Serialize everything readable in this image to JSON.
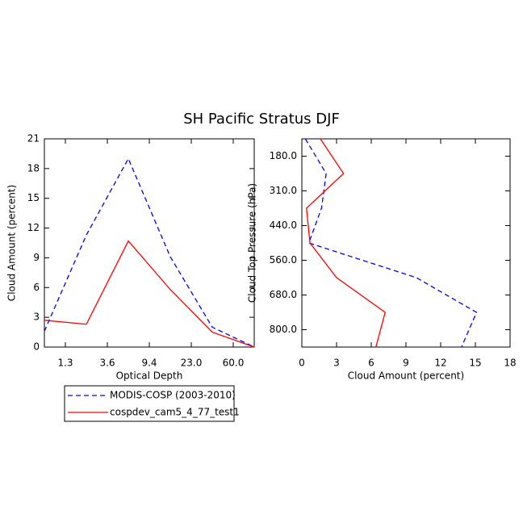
{
  "title": "SH Pacific Stratus DJF",
  "chart_data": [
    {
      "type": "line",
      "orientation": "vertical",
      "xlabel": "Optical Depth",
      "ylabel": "Cloud Amount (percent)",
      "x": [
        0,
        1,
        2,
        3,
        4,
        5
      ],
      "xlim": [
        0,
        5
      ],
      "xticks": [
        {
          "value": 0.5,
          "label": "1.3"
        },
        {
          "value": 1.5,
          "label": "3.6"
        },
        {
          "value": 2.5,
          "label": "9.4"
        },
        {
          "value": 3.5,
          "label": "23.0"
        },
        {
          "value": 4.5,
          "label": "60.0"
        }
      ],
      "ylim": [
        0,
        21
      ],
      "yticks": [
        0,
        3,
        6,
        9,
        12,
        15,
        18,
        21
      ],
      "series": [
        {
          "name": "MODIS-COSP (2003-2010)",
          "color": "#0000ff",
          "dash": true,
          "values": [
            1.6,
            11.3,
            19.0,
            9.1,
            2.0,
            0
          ]
        },
        {
          "name": "cospdev_cam5_4_77_test1",
          "color": "#ff0000",
          "dash": false,
          "values": [
            2.7,
            2.3,
            10.7,
            5.8,
            1.5,
            0
          ]
        }
      ]
    },
    {
      "type": "line",
      "orientation": "horizontal",
      "xlabel": "Cloud Amount (percent)",
      "ylabel": "Cloud Top Pressure (hPa)",
      "y": [
        0,
        1,
        2,
        3,
        4,
        5,
        6
      ],
      "ylim": [
        0,
        6
      ],
      "y_reversed": true,
      "yticks": [
        {
          "value": 0.5,
          "label": "180.0"
        },
        {
          "value": 1.5,
          "label": "310.0"
        },
        {
          "value": 2.5,
          "label": "440.0"
        },
        {
          "value": 3.5,
          "label": "560.0"
        },
        {
          "value": 4.5,
          "label": "680.0"
        },
        {
          "value": 5.5,
          "label": "800.0"
        }
      ],
      "xlim": [
        0,
        18
      ],
      "xticks": [
        0,
        3,
        6,
        9,
        12,
        15,
        18
      ],
      "series": [
        {
          "color": "#0000ff",
          "dash": true,
          "values": [
            0.3,
            2.1,
            1.7,
            0.6,
            9.9,
            15.1,
            13.8
          ]
        },
        {
          "color": "#ff0000",
          "dash": false,
          "values": [
            1.6,
            3.6,
            0.4,
            0.7,
            3.0,
            7.2,
            6.4
          ]
        }
      ]
    }
  ]
}
